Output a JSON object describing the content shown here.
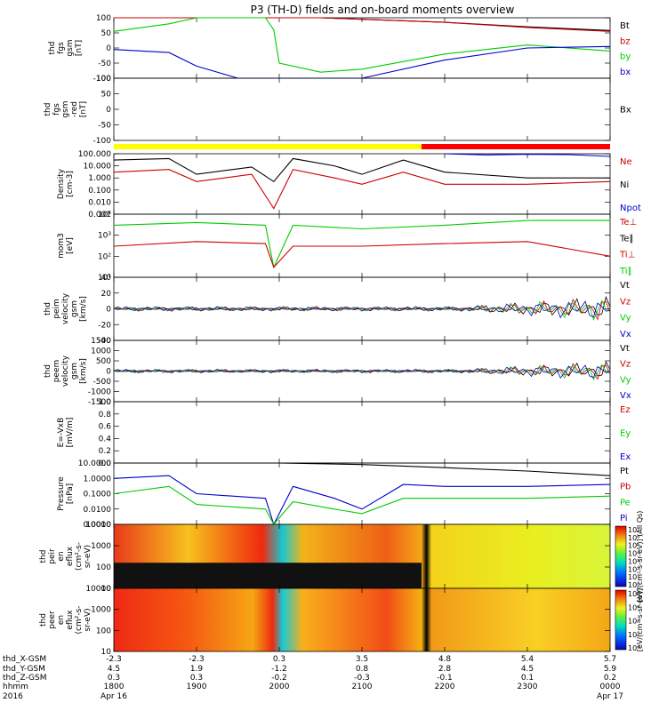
{
  "title": "P3 (TH-D) fields and on-board moments overview",
  "panels": [
    {
      "id": "fgs-gsm",
      "ylabel_lines": [
        "thd",
        "fgs",
        "gsm",
        "[nT]"
      ],
      "ticks": [
        "100",
        "50",
        "0",
        "-50",
        "-100"
      ],
      "tick_values": [
        100,
        50,
        0,
        -50,
        -100
      ],
      "legend": [
        {
          "label": "Bt",
          "color": "#000000"
        },
        {
          "label": "bz",
          "color": "#cc0000"
        },
        {
          "label": "by",
          "color": "#00cc00"
        },
        {
          "label": "bx",
          "color": "#0000cc"
        }
      ]
    },
    {
      "id": "fgs-gsm-red",
      "ylabel_lines": [
        "thd",
        "fgs",
        "gsm",
        "-red",
        "[nT]"
      ],
      "ticks": [
        "100",
        "50",
        "0",
        "-50",
        "-100"
      ],
      "tick_values": [
        100,
        50,
        0,
        -50,
        -100
      ],
      "legend": [
        {
          "label": "Bx",
          "color": "#000000"
        }
      ]
    },
    {
      "id": "density",
      "ylabel_lines": [
        "Density",
        "[cm-3]"
      ],
      "ticks": [
        "100.000",
        "10.000",
        "1.000",
        "0.100",
        "0.010",
        "0.001"
      ],
      "tick_values": [
        100,
        10,
        1,
        0.1,
        0.01,
        0.001
      ],
      "legend": [
        {
          "label": "Ne",
          "color": "#cc0000"
        },
        {
          "label": "Ni",
          "color": "#000000"
        },
        {
          "label": "Npot",
          "color": "#0000cc"
        }
      ]
    },
    {
      "id": "temperature",
      "ylabel_lines": [
        "mom3",
        "[eV]"
      ],
      "ticks": [
        "10⁴",
        "10³",
        "10²",
        "10¹"
      ],
      "tick_values": [
        10000,
        1000,
        100,
        10
      ],
      "legend": [
        {
          "label": "Te⊥",
          "color": "#cc0000"
        },
        {
          "label": "Te∥",
          "color": "#000000"
        },
        {
          "label": "Ti⊥",
          "color": "#cc0000"
        },
        {
          "label": "Ti∥",
          "color": "#00cc00"
        }
      ]
    },
    {
      "id": "ion-velocity",
      "ylabel_lines": [
        "thd",
        "peim",
        "velocity",
        "gsm",
        "[km/s]"
      ],
      "ticks": [
        "40",
        "20",
        "0",
        "-20",
        "-40"
      ],
      "tick_values": [
        40,
        20,
        0,
        -20,
        -40
      ],
      "legend": [
        {
          "label": "Vt",
          "color": "#000000"
        },
        {
          "label": "Vz",
          "color": "#cc0000"
        },
        {
          "label": "Vy",
          "color": "#00cc00"
        },
        {
          "label": "Vx",
          "color": "#0000cc"
        }
      ]
    },
    {
      "id": "electron-velocity",
      "ylabel_lines": [
        "thd",
        "peem",
        "velocity",
        "gsm",
        "[km/s]"
      ],
      "ticks": [
        "1500",
        "1000",
        "500",
        "0",
        "-500",
        "-1000",
        "-1500"
      ],
      "tick_values": [
        1500,
        1000,
        500,
        0,
        -500,
        -1000,
        -1500
      ],
      "legend": [
        {
          "label": "Vt",
          "color": "#000000"
        },
        {
          "label": "Vz",
          "color": "#cc0000"
        },
        {
          "label": "Vy",
          "color": "#00cc00"
        },
        {
          "label": "Vx",
          "color": "#0000cc"
        }
      ]
    },
    {
      "id": "efield",
      "ylabel_lines": [
        "E=-VxB",
        "[mV/m]"
      ],
      "ticks": [
        "1.0",
        "0.8",
        "0.6",
        "0.4",
        "0.2",
        "0.0"
      ],
      "tick_values": [
        1.0,
        0.8,
        0.6,
        0.4,
        0.2,
        0.0
      ],
      "legend": [
        {
          "label": "Ez",
          "color": "#cc0000"
        },
        {
          "label": "Ey",
          "color": "#00cc00"
        },
        {
          "label": "Ex",
          "color": "#0000cc"
        }
      ]
    },
    {
      "id": "pressure",
      "ylabel_lines": [
        "Pressure",
        "[nPa]"
      ],
      "ticks": [
        "10.0000",
        "1.0000",
        "0.1000",
        "0.0100",
        "0.0010"
      ],
      "tick_values": [
        10,
        1,
        0.1,
        0.01,
        0.001
      ],
      "legend": [
        {
          "label": "Pt",
          "color": "#000000"
        },
        {
          "label": "Pb",
          "color": "#cc0000"
        },
        {
          "label": "Pe",
          "color": "#00cc00"
        },
        {
          "label": "Pi",
          "color": "#0000cc"
        }
      ]
    },
    {
      "id": "ion-eflux",
      "ylabel_lines": [
        "thd",
        "peir",
        "en",
        "eflux",
        "(cm²-s-",
        "sr-eV)"
      ],
      "ticks": [
        "10000",
        "1000",
        "100",
        "10"
      ],
      "tick_values": [
        10000,
        1000,
        100,
        10
      ],
      "colorbar_ticks": [
        "10⁷",
        "10⁶",
        "10⁵",
        "10⁴",
        "10³",
        "10²",
        "10¹",
        "10⁰"
      ],
      "colorbar_label": "[eV/(cm²-s-sr-eV)] (All Qs)"
    },
    {
      "id": "electron-eflux",
      "ylabel_lines": [
        "thd",
        "peer",
        "en",
        "eflux",
        "(cm²-s-",
        "sr-eV)"
      ],
      "ticks": [
        "10000",
        "1000",
        "100",
        "10"
      ],
      "tick_values": [
        10000,
        1000,
        100,
        10
      ],
      "colorbar_ticks": [
        "10⁸",
        "10⁶",
        "10⁴",
        "10²",
        "10⁰"
      ],
      "colorbar_label": "[eV/(cm²-s-sr-eV)]"
    }
  ],
  "coordinate_bar": {
    "colors": [
      "#ffff00",
      "#ff0000"
    ]
  },
  "footer": {
    "row_labels": [
      "thd_X-GSM",
      "thd_Y-GSM",
      "thd_Z-GSM",
      "hhmm",
      "2016"
    ],
    "columns": [
      {
        "x": "-2.3",
        "y": "4.5",
        "z": "0.3",
        "hhmm": "1800",
        "date": "Apr 16"
      },
      {
        "x": "-2.3",
        "y": "1.9",
        "z": "0.3",
        "hhmm": "1900",
        "date": ""
      },
      {
        "x": "0.3",
        "y": "-1.2",
        "z": "-0.2",
        "hhmm": "2000",
        "date": ""
      },
      {
        "x": "3.5",
        "y": "0.8",
        "z": "-0.3",
        "hhmm": "2100",
        "date": ""
      },
      {
        "x": "4.8",
        "y": "2.8",
        "z": "-0.1",
        "hhmm": "2200",
        "date": ""
      },
      {
        "x": "5.4",
        "y": "4.5",
        "z": "0.1",
        "hhmm": "2300",
        "date": ""
      },
      {
        "x": "5.7",
        "y": "5.9",
        "z": "0.2",
        "hhmm": "0000",
        "date": "Apr 17"
      }
    ]
  },
  "chart_data": {
    "type": "line",
    "title": "P3 (TH-D) fields and on-board moments overview",
    "x_ticks": [
      "1800",
      "1900",
      "2000",
      "2100",
      "2200",
      "2300",
      "0000"
    ],
    "series": [
      {
        "panel": "fgs-gsm",
        "name": "Bt",
        "x": [
          "1800",
          "1840",
          "1900",
          "1930",
          "1950",
          "1956",
          "2000",
          "2030",
          "2100",
          "2200",
          "2300",
          "0000"
        ],
        "values": [
          120,
          118,
          115,
          112,
          110,
          108,
          104,
          100,
          95,
          85,
          70,
          58
        ]
      },
      {
        "panel": "fgs-gsm",
        "name": "bz",
        "x": [
          "1800",
          "1840",
          "1900",
          "1930",
          "1950",
          "1956",
          "2000",
          "2030",
          "2100",
          "2200",
          "2300",
          "0000"
        ],
        "values": [
          120,
          118,
          115,
          112,
          110,
          108,
          104,
          100,
          95,
          85,
          68,
          55
        ]
      },
      {
        "panel": "fgs-gsm",
        "name": "by",
        "x": [
          "1800",
          "1840",
          "1900",
          "1930",
          "1950",
          "1956",
          "2000",
          "2030",
          "2100",
          "2200",
          "2300",
          "0000"
        ],
        "values": [
          55,
          80,
          110,
          110,
          105,
          60,
          -50,
          -80,
          -70,
          -20,
          10,
          -10
        ]
      },
      {
        "panel": "fgs-gsm",
        "name": "bx",
        "x": [
          "1800",
          "1840",
          "1900",
          "1930",
          "1950",
          "1956",
          "2000",
          "2030",
          "2100",
          "2200",
          "2300",
          "0000"
        ],
        "values": [
          -5,
          -15,
          -60,
          -130,
          -130,
          -130,
          -130,
          -130,
          -120,
          -40,
          0,
          5
        ]
      },
      {
        "panel": "density",
        "name": "Ni",
        "x": [
          "1800",
          "1840",
          "1900",
          "1940",
          "1956",
          "2010",
          "2040",
          "2100",
          "2130",
          "2200",
          "2300",
          "0000"
        ],
        "values": [
          30,
          40,
          2,
          8,
          0.5,
          40,
          10,
          2,
          30,
          3,
          1,
          1
        ]
      },
      {
        "panel": "density",
        "name": "Ne",
        "x": [
          "1800",
          "1840",
          "1900",
          "1940",
          "1956",
          "2010",
          "2040",
          "2100",
          "2130",
          "2200",
          "2300",
          "0000"
        ],
        "values": [
          3,
          5,
          0.5,
          2,
          0.003,
          5,
          1,
          0.3,
          3,
          0.3,
          0.3,
          0.5
        ]
      },
      {
        "panel": "density",
        "name": "Npot",
        "x": [
          "2200",
          "2230",
          "2300",
          "2330",
          "0000"
        ],
        "values": [
          100,
          80,
          90,
          85,
          60
        ]
      },
      {
        "panel": "temperature",
        "name": "Ti∥",
        "x": [
          "1800",
          "1900",
          "1950",
          "1956",
          "2010",
          "2100",
          "2200",
          "2300",
          "0000"
        ],
        "values": [
          3000,
          4000,
          3000,
          30,
          3000,
          2000,
          3000,
          5000,
          5000
        ]
      },
      {
        "panel": "temperature",
        "name": "Te⊥",
        "x": [
          "1800",
          "1900",
          "1950",
          "1956",
          "2010",
          "2100",
          "2200",
          "2300",
          "0000"
        ],
        "values": [
          300,
          500,
          400,
          30,
          300,
          300,
          400,
          500,
          100
        ]
      },
      {
        "panel": "pressure",
        "name": "Pt",
        "x": [
          "1800",
          "1830",
          "1900",
          "2000",
          "2100",
          "2200",
          "2300",
          "0000"
        ],
        "values": [
          15,
          15,
          12,
          10,
          8,
          5,
          3,
          1.5
        ]
      },
      {
        "panel": "pressure",
        "name": "Pi",
        "x": [
          "1800",
          "1840",
          "1900",
          "1950",
          "1956",
          "2010",
          "2040",
          "2100",
          "2130",
          "2200",
          "2300",
          "0000"
        ],
        "values": [
          1,
          1.5,
          0.1,
          0.05,
          0.0007,
          0.3,
          0.05,
          0.01,
          0.4,
          0.3,
          0.3,
          0.4
        ]
      },
      {
        "panel": "pressure",
        "name": "Pe",
        "x": [
          "1800",
          "1840",
          "1900",
          "1950",
          "1956",
          "2010",
          "2040",
          "2100",
          "2130",
          "2200",
          "2300",
          "0000"
        ],
        "values": [
          0.1,
          0.3,
          0.02,
          0.01,
          0.0007,
          0.03,
          0.01,
          0.005,
          0.05,
          0.05,
          0.05,
          0.07
        ]
      }
    ],
    "ylim_by_panel": {
      "fgs-gsm": [
        -100,
        100
      ],
      "fgs-gsm-red": [
        -100,
        100
      ],
      "density": [
        0.001,
        100
      ],
      "temperature": [
        10,
        10000
      ],
      "ion-velocity": [
        -40,
        40
      ],
      "electron-velocity": [
        -1500,
        1500
      ],
      "efield": [
        0,
        1
      ],
      "pressure": [
        0.001,
        10
      ]
    },
    "log_scale_panels": [
      "density",
      "temperature",
      "pressure",
      "ion-eflux",
      "electron-eflux"
    ],
    "grid": false,
    "legend_placement": "right"
  }
}
